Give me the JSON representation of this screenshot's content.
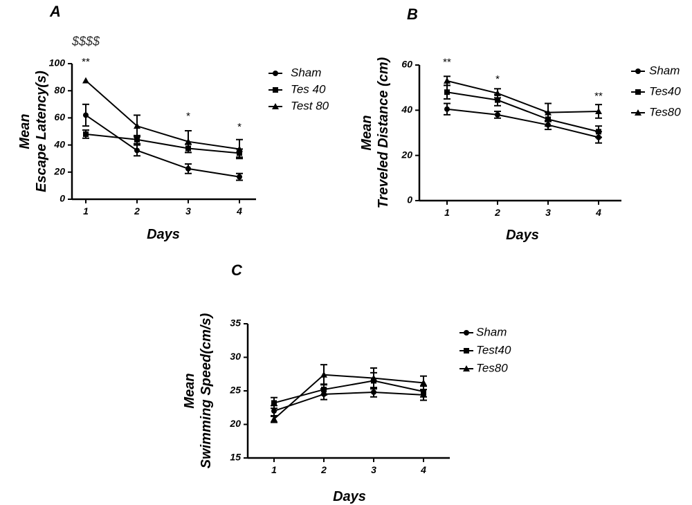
{
  "chart_data": [
    {
      "id": "A",
      "type": "line",
      "panel_label": "A",
      "xlabel": "Days",
      "ylabel_lines": [
        "Mean",
        "Escape Latency(s)"
      ],
      "categories": [
        "1",
        "2",
        "3",
        "4"
      ],
      "ylim": [
        0,
        100
      ],
      "yticks": [
        "0",
        "20",
        "40",
        "60",
        "80",
        "100"
      ],
      "series": [
        {
          "name": "Sham",
          "marker": "circle",
          "values": [
            62,
            36,
            22.5,
            16.5
          ],
          "errors": [
            8,
            4,
            3.5,
            2.5
          ]
        },
        {
          "name": "Tes 40",
          "marker": "square",
          "values": [
            48,
            44,
            37.5,
            34
          ],
          "errors": [
            3,
            3,
            3,
            3
          ]
        },
        {
          "name": "Test 80",
          "marker": "triangle",
          "values": [
            87.5,
            54,
            42.5,
            37
          ],
          "errors": [
            0,
            8,
            8,
            7
          ]
        }
      ],
      "annotations": [
        {
          "text": "$$$$",
          "x": "1",
          "y": 116,
          "style": "dollar"
        },
        {
          "text": "**",
          "x": "1",
          "y": 101,
          "style": "star"
        },
        {
          "text": "*",
          "x": "3",
          "y": 61,
          "style": "star"
        },
        {
          "text": "*",
          "x": "4",
          "y": 53,
          "style": "star"
        }
      ],
      "legend": "right"
    },
    {
      "id": "B",
      "type": "line",
      "panel_label": "B",
      "xlabel": "Days",
      "ylabel_lines": [
        "Mean",
        "Treveled Distance (cm)"
      ],
      "categories": [
        "1",
        "2",
        "3",
        "4"
      ],
      "ylim": [
        0,
        60
      ],
      "yticks": [
        "0",
        "20",
        "40",
        "60"
      ],
      "series": [
        {
          "name": "Sham",
          "marker": "circle",
          "values": [
            40.5,
            38,
            33.5,
            28
          ],
          "errors": [
            2.5,
            1.5,
            2,
            2.5
          ]
        },
        {
          "name": "Tes40",
          "marker": "square",
          "values": [
            48,
            44.5,
            36,
            30.5
          ],
          "errors": [
            3,
            2.5,
            3,
            2.5
          ]
        },
        {
          "name": "Tes80",
          "marker": "triangle",
          "values": [
            53,
            47.5,
            39,
            39.5
          ],
          "errors": [
            2,
            2,
            4,
            3
          ]
        }
      ],
      "annotations": [
        {
          "text": "**",
          "x": "1",
          "y": 61,
          "style": "star"
        },
        {
          "text": "*",
          "x": "2",
          "y": 53.5,
          "style": "star"
        },
        {
          "text": "**",
          "x": "4",
          "y": 46,
          "style": "star"
        }
      ],
      "legend": "right"
    },
    {
      "id": "C",
      "type": "line",
      "panel_label": "C",
      "xlabel": "Days",
      "ylabel_lines": [
        "Mean",
        "Swimming Speed(cm/s)"
      ],
      "categories": [
        "1",
        "2",
        "3",
        "4"
      ],
      "ylim": [
        15,
        35
      ],
      "yticks": [
        "15",
        "20",
        "25",
        "30",
        "35"
      ],
      "series": [
        {
          "name": "Sham",
          "marker": "circle",
          "values": [
            22,
            24.5,
            24.8,
            24.4
          ],
          "errors": [
            0.8,
            0.8,
            0.7,
            0.8
          ]
        },
        {
          "name": "Test40",
          "marker": "square",
          "values": [
            23.2,
            25.2,
            26.5,
            24.9
          ],
          "errors": [
            0.8,
            0.8,
            1.2,
            0.8
          ]
        },
        {
          "name": "Tes80",
          "marker": "triangle",
          "values": [
            20.8,
            27.4,
            26.9,
            26.2
          ],
          "errors": [
            0.5,
            1.5,
            1.5,
            1.0
          ]
        }
      ],
      "annotations": [],
      "legend": "right"
    }
  ]
}
